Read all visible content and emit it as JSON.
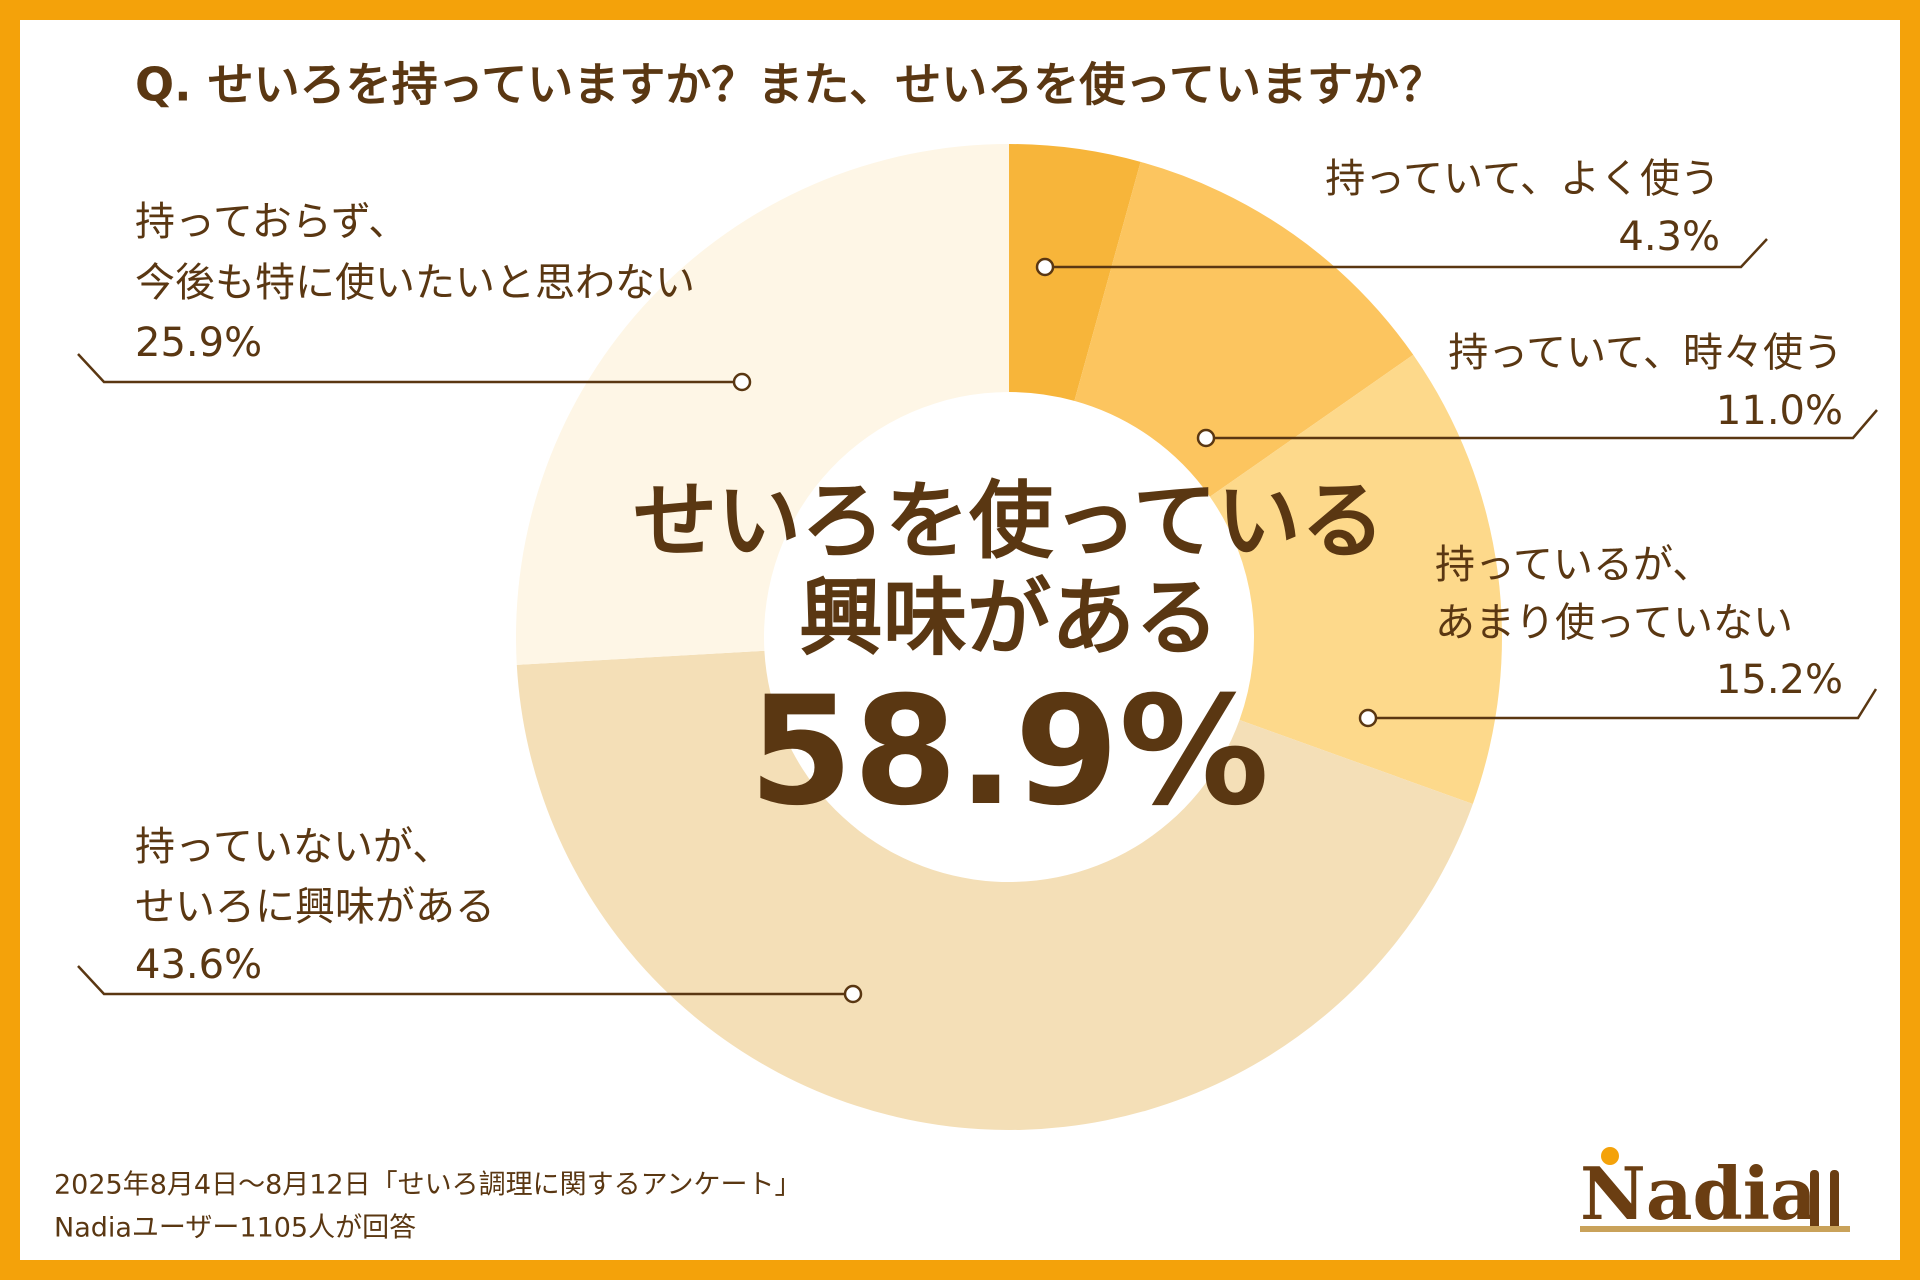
{
  "chart_data": {
    "type": "donut",
    "title": "Q. せいろを持っていますか？また、せいろを使っていますか？",
    "categories": [
      "持っていて、よく使う",
      "持っていて、時々使う",
      "持っているが、\nあまり使っていない",
      "持っていないが、\nせいろに興味がある",
      "持っておらず、\n今後も特に使いたいと思わない"
    ],
    "values": [
      4.3,
      11.0,
      15.2,
      43.6,
      25.9
    ],
    "value_labels": [
      "4.3%",
      "11.0%",
      "15.2%",
      "43.6%",
      "25.9%"
    ],
    "colors": [
      "#f7b53a",
      "#fcc55f",
      "#fdd98b",
      "#f4dfb7",
      "#fef6e6"
    ],
    "center_label": "せいろを使っている\n興味がある",
    "center_value": {
      "value": 58.9,
      "label": "58.9%"
    },
    "footnote": [
      "2025年8月4日～8月12日「せいろ調理に関するアンケート」",
      "Nadiaユーザー1105人が回答"
    ],
    "logo": "Nadia"
  }
}
